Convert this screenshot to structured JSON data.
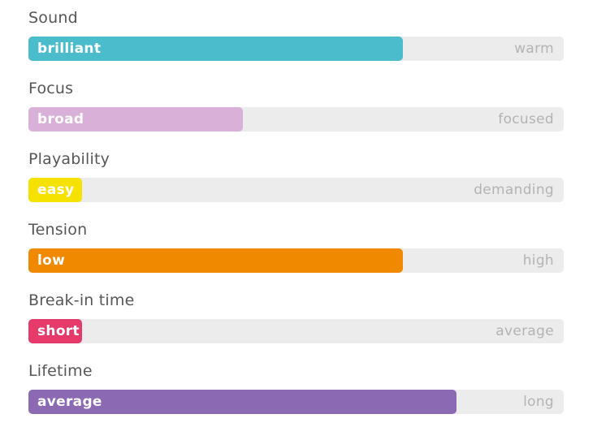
{
  "panel": {
    "background_color": "#ffffff",
    "track_color": "#ececec",
    "heading_text_color": "#57575a",
    "right_label_text_color": "#b3b3b3",
    "fill_label_text_color": "#ffffff"
  },
  "chart_data": {
    "type": "bar",
    "orientation": "horizontal",
    "title": "",
    "categories": [
      "Sound",
      "Focus",
      "Playability",
      "Tension",
      "Break-in time",
      "Lifetime"
    ],
    "values": [
      70,
      40,
      10,
      70,
      10,
      80
    ],
    "value_meaning": "fill percent of track toward the left-hand descriptor",
    "xlim": [
      0,
      100
    ],
    "grid": false,
    "legend": false,
    "left_labels": [
      "brilliant",
      "broad",
      "easy",
      "low",
      "short",
      "average"
    ],
    "right_labels": [
      "warm",
      "focused",
      "demanding",
      "high",
      "average",
      "long"
    ],
    "bar_colors": [
      "#4bbccb",
      "#d9b0d7",
      "#f6e200",
      "#f08900",
      "#e63a6b",
      "#8b69b3"
    ]
  }
}
